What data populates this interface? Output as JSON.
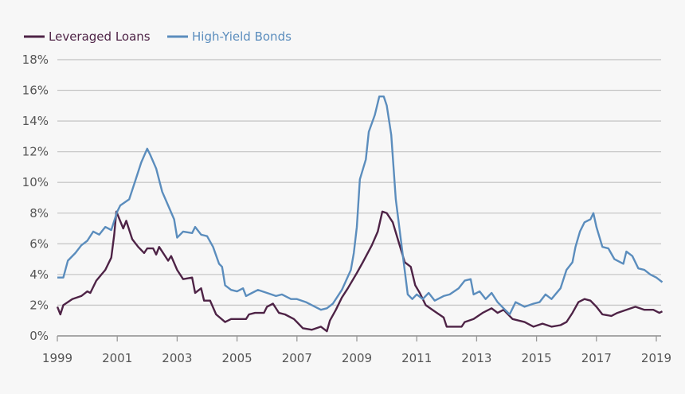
{
  "chart_data": {
    "type": "line",
    "title": "",
    "xlabel": "",
    "ylabel": "",
    "xlim": [
      1999,
      2019.25
    ],
    "ylim": [
      0,
      18
    ],
    "grid": true,
    "legend_position": "top-left",
    "x_ticks": [
      "1999",
      "2001",
      "2003",
      "2005",
      "2007",
      "2009",
      "2011",
      "2013",
      "2015",
      "2017",
      "2019"
    ],
    "y_ticks": [
      "0%",
      "2%",
      "4%",
      "6%",
      "8%",
      "10%",
      "12%",
      "14%",
      "16%",
      "18%"
    ],
    "series": [
      {
        "name": "Leveraged Loans",
        "color": "#4e2346",
        "x": [
          1999.0,
          1999.1,
          1999.2,
          1999.5,
          1999.8,
          2000.0,
          2000.1,
          2000.3,
          2000.6,
          2000.8,
          2000.9,
          2000.97,
          2001.2,
          2001.3,
          2001.5,
          2001.7,
          2001.9,
          2002.0,
          2002.2,
          2002.3,
          2002.4,
          2002.7,
          2002.8,
          2003.0,
          2003.2,
          2003.5,
          2003.6,
          2003.8,
          2003.9,
          2004.1,
          2004.3,
          2004.6,
          2004.8,
          2005.0,
          2005.3,
          2005.4,
          2005.6,
          2005.9,
          2006.0,
          2006.2,
          2006.4,
          2006.6,
          2006.9,
          2007.0,
          2007.2,
          2007.5,
          2007.8,
          2008.0,
          2008.1,
          2008.3,
          2008.5,
          2008.7,
          2009.0,
          2009.2,
          2009.5,
          2009.7,
          2009.85,
          2010.0,
          2010.2,
          2010.4,
          2010.6,
          2010.8,
          2010.95,
          2011.1,
          2011.3,
          2011.6,
          2011.9,
          2012.0,
          2012.5,
          2012.6,
          2012.9,
          2013.2,
          2013.5,
          2013.7,
          2013.9,
          2014.2,
          2014.6,
          2014.9,
          2015.2,
          2015.5,
          2015.8,
          2016.0,
          2016.2,
          2016.4,
          2016.6,
          2016.8,
          2017.0,
          2017.2,
          2017.5,
          2017.7,
          2018.0,
          2018.3,
          2018.6,
          2018.9,
          2019.1,
          2019.2
        ],
        "values": [
          1.9,
          1.4,
          2.0,
          2.4,
          2.6,
          2.9,
          2.8,
          3.6,
          4.3,
          5.1,
          6.6,
          8.1,
          7.0,
          7.5,
          6.3,
          5.8,
          5.4,
          5.7,
          5.7,
          5.3,
          5.8,
          4.9,
          5.2,
          4.3,
          3.7,
          3.8,
          2.8,
          3.1,
          2.3,
          2.3,
          1.4,
          0.9,
          1.1,
          1.1,
          1.1,
          1.4,
          1.5,
          1.5,
          1.9,
          2.1,
          1.5,
          1.4,
          1.1,
          0.9,
          0.5,
          0.4,
          0.6,
          0.3,
          1.0,
          1.7,
          2.5,
          3.1,
          4.1,
          4.8,
          5.9,
          6.8,
          8.1,
          8.0,
          7.4,
          6.1,
          4.8,
          4.5,
          3.3,
          2.8,
          2.0,
          1.6,
          1.2,
          0.6,
          0.6,
          0.9,
          1.1,
          1.5,
          1.8,
          1.5,
          1.7,
          1.1,
          0.9,
          0.6,
          0.8,
          0.6,
          0.7,
          0.9,
          1.5,
          2.2,
          2.4,
          2.3,
          1.9,
          1.4,
          1.3,
          1.5,
          1.7,
          1.9,
          1.7,
          1.7,
          1.5,
          1.6
        ]
      },
      {
        "name": "High-Yield Bonds",
        "color": "#5b8dbd",
        "x": [
          1999.0,
          1999.2,
          1999.35,
          1999.6,
          1999.8,
          2000.0,
          2000.2,
          2000.4,
          2000.6,
          2000.8,
          2001.0,
          2001.1,
          2001.4,
          2001.6,
          2001.8,
          2002.0,
          2002.1,
          2002.3,
          2002.5,
          2002.7,
          2002.9,
          2003.0,
          2003.2,
          2003.5,
          2003.6,
          2003.8,
          2004.0,
          2004.2,
          2004.4,
          2004.5,
          2004.6,
          2004.8,
          2005.0,
          2005.2,
          2005.3,
          2005.5,
          2005.7,
          2006.0,
          2006.3,
          2006.5,
          2006.8,
          2007.0,
          2007.3,
          2007.5,
          2007.8,
          2008.0,
          2008.2,
          2008.5,
          2008.8,
          2008.9,
          2009.0,
          2009.1,
          2009.3,
          2009.4,
          2009.6,
          2009.75,
          2009.9,
          2010.0,
          2010.15,
          2010.3,
          2010.5,
          2010.7,
          2010.85,
          2011.0,
          2011.2,
          2011.4,
          2011.6,
          2011.9,
          2012.1,
          2012.4,
          2012.6,
          2012.8,
          2012.9,
          2013.1,
          2013.3,
          2013.5,
          2013.7,
          2013.9,
          2014.1,
          2014.3,
          2014.6,
          2014.9,
          2015.1,
          2015.3,
          2015.5,
          2015.8,
          2016.0,
          2016.2,
          2016.3,
          2016.45,
          2016.6,
          2016.8,
          2016.9,
          2017.0,
          2017.2,
          2017.4,
          2017.6,
          2017.9,
          2018.0,
          2018.2,
          2018.4,
          2018.6,
          2018.8,
          2019.0,
          2019.2
        ],
        "values": [
          3.8,
          3.8,
          4.9,
          5.4,
          5.9,
          6.2,
          6.8,
          6.6,
          7.1,
          6.9,
          8.1,
          8.5,
          8.9,
          10.1,
          11.3,
          12.2,
          11.8,
          10.9,
          9.4,
          8.5,
          7.6,
          6.4,
          6.8,
          6.7,
          7.1,
          6.6,
          6.5,
          5.8,
          4.7,
          4.5,
          3.3,
          3.0,
          2.9,
          3.1,
          2.6,
          2.8,
          3.0,
          2.8,
          2.6,
          2.7,
          2.4,
          2.4,
          2.2,
          2.0,
          1.7,
          1.8,
          2.1,
          3.0,
          4.3,
          5.4,
          7.1,
          10.2,
          11.5,
          13.3,
          14.4,
          15.6,
          15.6,
          15.0,
          13.1,
          8.9,
          5.8,
          2.7,
          2.4,
          2.7,
          2.4,
          2.8,
          2.3,
          2.6,
          2.7,
          3.1,
          3.6,
          3.7,
          2.7,
          2.9,
          2.4,
          2.8,
          2.2,
          1.8,
          1.4,
          2.2,
          1.9,
          2.1,
          2.2,
          2.7,
          2.4,
          3.1,
          4.3,
          4.8,
          5.8,
          6.8,
          7.4,
          7.6,
          8.0,
          7.1,
          5.8,
          5.7,
          5.0,
          4.7,
          5.5,
          5.2,
          4.4,
          4.3,
          4.0,
          3.8,
          3.5
        ]
      }
    ]
  }
}
